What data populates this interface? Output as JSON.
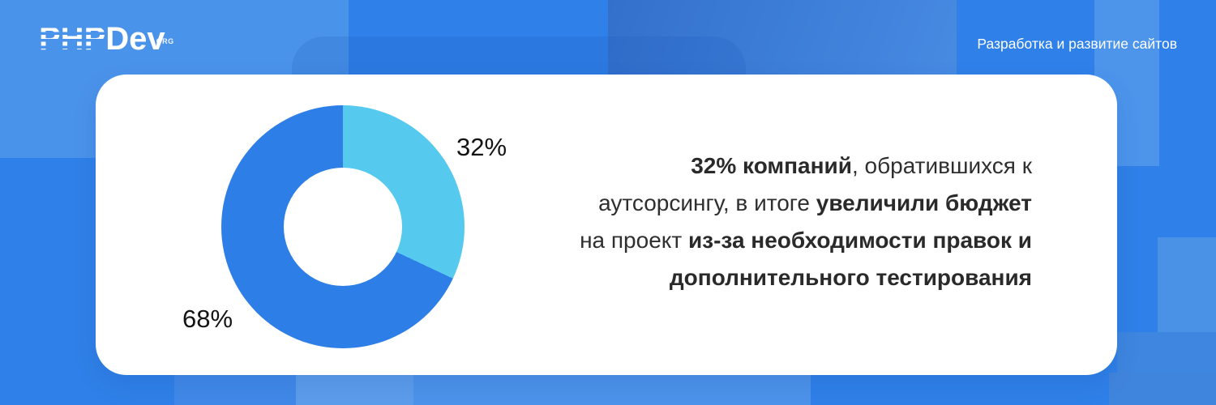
{
  "brand": {
    "logo_php": "PHP",
    "logo_dev": "Dev",
    "logo_org": ".ORG"
  },
  "header": {
    "tagline": "Разработка и развитие сайтов"
  },
  "statement": {
    "line1_bold": "32% компаний",
    "line1_rest": ", обратившихся к",
    "line2_pre": "аутсорсингу, в итоге ",
    "line2_bold": "увеличили бюджет",
    "line3_pre": "на проект ",
    "line3_bold": "из-за необходимости правок и",
    "line4_bold": "дополнительного тестирования"
  },
  "chart_data": {
    "type": "pie",
    "donut": true,
    "start_angle_deg": 0,
    "direction": "clockwise",
    "slices": [
      {
        "label": "32%",
        "value": 32,
        "color": "#55CAEE"
      },
      {
        "label": "68%",
        "value": 68,
        "color": "#2E7EE7"
      }
    ],
    "title": "",
    "legend": "none",
    "labels_position": "outside"
  },
  "colors": {
    "background_base": "#2F80E8",
    "background_light_tile": "#4A93EA",
    "card": "#FFFFFF",
    "slice_light": "#55CAEE",
    "slice_dark": "#2E7EE7",
    "text_dark": "#2F2F2F",
    "text_light": "#FFFFFF"
  }
}
